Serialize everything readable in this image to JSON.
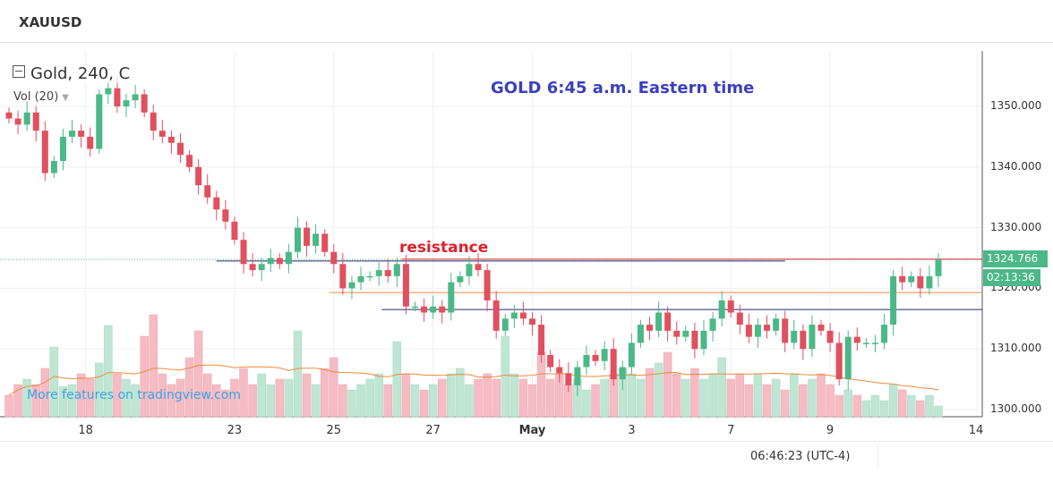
{
  "header": {
    "symbol": "XAUUSD"
  },
  "legend": {
    "series": "Gold, 240, C",
    "volume": "Vol (20)"
  },
  "annotations": {
    "title": "GOLD 6:45 a.m. Eastern time",
    "resistance": "resistance",
    "watermark": "More features on tradingview.com"
  },
  "status": {
    "last_price": "1324.766",
    "countdown": "02:13:36",
    "clock": "06:46:23 (UTC-4)"
  },
  "colors": {
    "up": "#4bb887",
    "down": "#e0505e",
    "up_vol": "#bfe6d3",
    "down_vol": "#f5bcc4",
    "resistance": "#d0202a",
    "support_orange": "#f08a3c",
    "support_navy": "#1f2a6b",
    "title": "#3b3fbf"
  },
  "chart_data": {
    "type": "candlestick",
    "title": "Gold, 240",
    "ylim": [
      1298,
      1357
    ],
    "y_ticks": [
      "1300.000",
      "1310.000",
      "1320.000",
      "1330.000",
      "1340.000",
      "1350.000"
    ],
    "y_tick_values": [
      1300,
      1310,
      1320,
      1330,
      1340,
      1350
    ],
    "x_ticks": [
      {
        "label": "18",
        "index": 8.5
      },
      {
        "label": "23",
        "index": 25
      },
      {
        "label": "25",
        "index": 36
      },
      {
        "label": "27",
        "index": 47
      },
      {
        "label": "May",
        "index": 58,
        "bold": true
      },
      {
        "label": "3",
        "index": 69
      },
      {
        "label": "7",
        "index": 80
      },
      {
        "label": "9",
        "index": 91
      },
      {
        "label": "14",
        "index": 107.3
      }
    ],
    "first_open": 1349,
    "close": [
      1348,
      1347,
      1349,
      1346,
      1339,
      1341,
      1345,
      1346,
      1345,
      1343,
      1352,
      1353,
      1350,
      1351,
      1352,
      1349,
      1346,
      1345,
      1344,
      1342,
      1340,
      1337,
      1335,
      1333,
      1331,
      1328,
      1324,
      1323,
      1324,
      1325,
      1324,
      1326,
      1330,
      1327,
      1329,
      1326,
      1324,
      1320,
      1321,
      1322,
      1322,
      1323,
      1322,
      1324,
      1317,
      1317,
      1316,
      1317,
      1316,
      1321,
      1322,
      1324,
      1323,
      1318,
      1313,
      1315,
      1316,
      1315,
      1314,
      1309,
      1307,
      1306,
      1304,
      1307,
      1309,
      1308,
      1310,
      1305,
      1307,
      1311,
      1314,
      1313,
      1316,
      1313,
      1312,
      1313,
      1310,
      1313,
      1315,
      1318,
      1316,
      1314,
      1312,
      1314,
      1313,
      1315,
      1311,
      1313,
      1310,
      1314,
      1313,
      1311,
      1305,
      1312,
      1311,
      1311,
      1311,
      1314,
      1322,
      1321,
      1322,
      1320,
      1322,
      1324.766
    ],
    "volume": [
      20,
      30,
      35,
      30,
      45,
      65,
      28,
      30,
      40,
      35,
      50,
      85,
      40,
      35,
      30,
      75,
      95,
      40,
      30,
      35,
      55,
      80,
      40,
      30,
      25,
      35,
      45,
      30,
      40,
      30,
      35,
      35,
      80,
      40,
      30,
      45,
      55,
      30,
      25,
      30,
      35,
      40,
      30,
      70,
      40,
      30,
      25,
      30,
      35,
      40,
      45,
      30,
      35,
      40,
      35,
      75,
      40,
      35,
      30,
      60,
      35,
      40,
      30,
      35,
      25,
      30,
      35,
      40,
      45,
      40,
      35,
      45,
      50,
      60,
      40,
      35,
      45,
      35,
      40,
      55,
      35,
      40,
      30,
      40,
      30,
      35,
      25,
      40,
      30,
      35,
      40,
      30,
      20,
      25,
      20,
      15,
      20,
      15,
      30,
      25,
      20,
      15,
      20,
      10
    ],
    "volume_ma_period": 20,
    "hlines": [
      {
        "name": "resistance",
        "price": 1324.8,
        "color": "#d0202a",
        "from_index": 43.5
      },
      {
        "name": "resistance-base",
        "price": 1324.5,
        "color": "#1f2a6b",
        "from_index": 23,
        "to_index": 86
      },
      {
        "name": "orange-support",
        "price": 1319.3,
        "color": "#f08a3c",
        "from_index": 35.5
      },
      {
        "name": "navy-support",
        "price": 1316.5,
        "color": "#1f2a6b",
        "from_index": 41.3
      }
    ]
  }
}
